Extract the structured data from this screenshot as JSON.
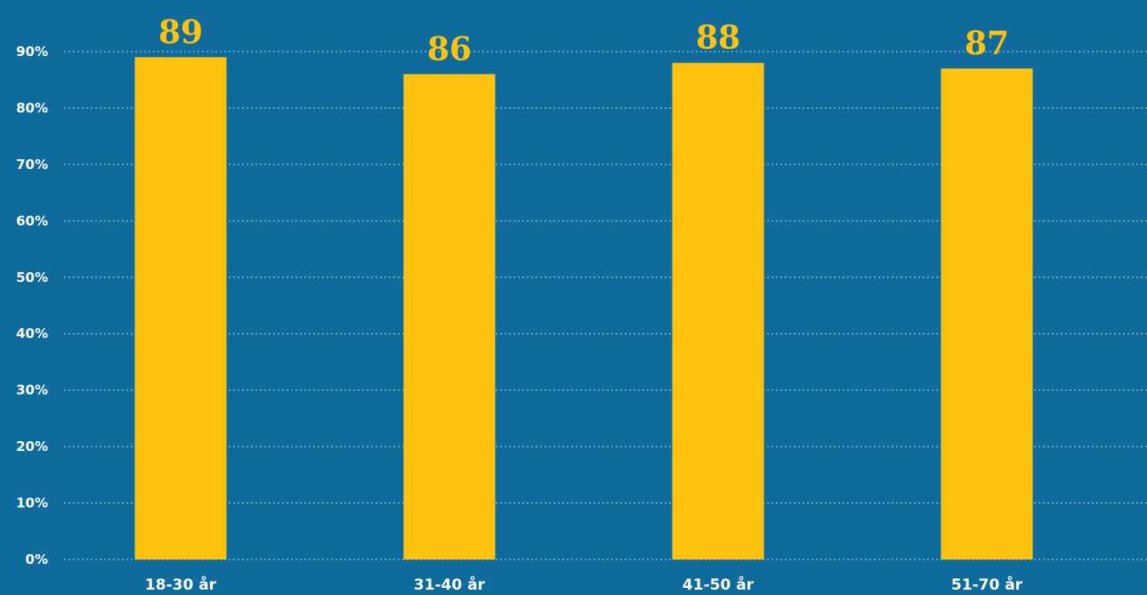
{
  "chart_data": {
    "type": "bar",
    "categories": [
      "18-30 år",
      "31-40 år",
      "41-50 år",
      "51-70 år"
    ],
    "values": [
      89,
      86,
      88,
      87
    ],
    "data_labels": [
      "89",
      "86",
      "88",
      "87"
    ],
    "ylim": [
      0,
      90
    ],
    "yticks": [
      0,
      10,
      20,
      30,
      40,
      50,
      60,
      70,
      80,
      90
    ],
    "ytick_labels": [
      "0%",
      "10%",
      "20%",
      "30%",
      "40%",
      "50%",
      "60%",
      "70%",
      "80%",
      "90%"
    ],
    "grid": true,
    "colors": {
      "background": "#0f6b9b",
      "bar": "#ffc20e",
      "label": "#ffc20e",
      "axis_text": "#ffffff"
    }
  }
}
